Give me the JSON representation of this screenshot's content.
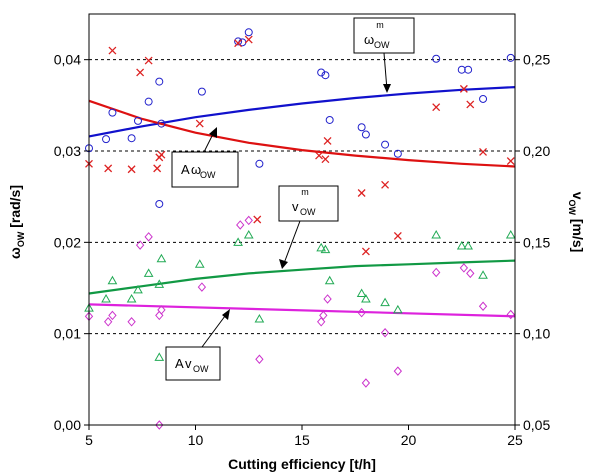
{
  "chart_data": {
    "type": "scatter",
    "xlabel": "Cutting efficiency  [t/h]",
    "ylabel_left": {
      "main": "ω",
      "sub": "OW",
      "unit": "  [rad/s]"
    },
    "ylabel_right": {
      "main": "v",
      "sub": "OW",
      "unit": "  [m/s]"
    },
    "xlim": [
      5,
      25
    ],
    "ylim_left": [
      0,
      0.045
    ],
    "ylim_right": [
      0.05,
      0.275
    ],
    "xticks": [
      5,
      10,
      15,
      20,
      25
    ],
    "xtick_labels": [
      "5",
      "10",
      "15",
      "20",
      "25"
    ],
    "yticks_left": [
      0,
      0.01,
      0.02,
      0.03,
      0.04
    ],
    "ytick_labels_left": [
      "0,00",
      "0,01",
      "0,02",
      "0,03",
      "0,04"
    ],
    "yticks_right": [
      0.05,
      0.1,
      0.15,
      0.2,
      0.25
    ],
    "ytick_labels_right": [
      "0,05",
      "0,10",
      "0,15",
      "0,20",
      "0,25"
    ],
    "grid": "horizontal dashed",
    "series": [
      {
        "marker": "circle",
        "color": "#2222cc",
        "axis": "left",
        "x": [
          5.0,
          5.8,
          6.1,
          7.0,
          7.3,
          7.8,
          8.3,
          8.3,
          8.4,
          10.3,
          12.0,
          12.2,
          12.5,
          13.0,
          15.9,
          16.1,
          16.3,
          17.8,
          18.0,
          18.9,
          19.5,
          21.3,
          22.5,
          22.8,
          23.5,
          24.8
        ],
        "y": [
          0.0303,
          0.0313,
          0.0342,
          0.0314,
          0.0333,
          0.0354,
          0.0242,
          0.0376,
          0.033,
          0.0365,
          0.042,
          0.0419,
          0.043,
          0.0286,
          0.0386,
          0.0383,
          0.0334,
          0.0326,
          0.0318,
          0.0307,
          0.0297,
          0.0401,
          0.0389,
          0.0389,
          0.0357,
          0.0402
        ]
      },
      {
        "marker": "x",
        "color": "#dd2222",
        "axis": "left",
        "x": [
          5.0,
          5.9,
          6.1,
          7.0,
          7.4,
          7.8,
          8.2,
          8.3,
          8.4,
          10.2,
          12.0,
          12.5,
          12.9,
          15.8,
          16.1,
          16.2,
          17.8,
          18.0,
          18.9,
          19.5,
          21.3,
          22.6,
          22.9,
          23.5,
          24.8
        ],
        "y": [
          0.0286,
          0.0281,
          0.041,
          0.028,
          0.0386,
          0.0399,
          0.0281,
          0.0293,
          0.0296,
          0.033,
          0.0418,
          0.0422,
          0.0225,
          0.0295,
          0.0291,
          0.0311,
          0.0254,
          0.019,
          0.0263,
          0.0207,
          0.0348,
          0.0368,
          0.0351,
          0.0299,
          0.0289
        ]
      },
      {
        "marker": "triangle",
        "color": "#22aa55",
        "axis": "right",
        "x": [
          5.0,
          5.8,
          6.1,
          7.0,
          7.3,
          7.8,
          8.3,
          8.3,
          8.4,
          10.2,
          12.0,
          12.5,
          13.0,
          15.9,
          16.1,
          16.3,
          17.8,
          18.0,
          18.9,
          19.5,
          21.3,
          22.5,
          22.8,
          23.5,
          24.8
        ],
        "y": [
          0.114,
          0.119,
          0.129,
          0.119,
          0.124,
          0.133,
          0.087,
          0.127,
          0.141,
          0.138,
          0.15,
          0.154,
          0.108,
          0.147,
          0.146,
          0.129,
          0.122,
          0.119,
          0.117,
          0.113,
          0.154,
          0.148,
          0.148,
          0.132,
          0.154
        ]
      },
      {
        "marker": "diamond",
        "color": "#cc33cc",
        "axis": "left",
        "x": [
          5.0,
          5.9,
          6.1,
          7.0,
          7.4,
          7.8,
          8.3,
          8.3,
          8.4,
          10.3,
          12.1,
          12.5,
          13.0,
          15.9,
          16.0,
          16.2,
          17.8,
          18.0,
          18.9,
          19.5,
          21.3,
          22.6,
          22.9,
          23.5,
          24.8
        ],
        "y": [
          0.0119,
          0.0113,
          0.012,
          0.0113,
          0.0197,
          0.0206,
          0.0,
          0.012,
          0.0126,
          0.0151,
          0.0219,
          0.0224,
          0.0072,
          0.0113,
          0.012,
          0.0138,
          0.0123,
          0.0046,
          0.0101,
          0.0059,
          0.0167,
          0.0172,
          0.0166,
          0.013,
          0.0121
        ]
      }
    ],
    "trendlines": [
      {
        "color": "#1111cc",
        "axis": "left",
        "x": [
          5,
          7.5,
          10,
          12.5,
          15,
          17.5,
          20,
          22.5,
          25
        ],
        "y": [
          0.0316,
          0.0327,
          0.0337,
          0.0345,
          0.0352,
          0.0358,
          0.0363,
          0.0367,
          0.037
        ]
      },
      {
        "color": "#dd1111",
        "axis": "left",
        "x": [
          5,
          7.5,
          10,
          12.5,
          15,
          17.5,
          20,
          22.5,
          25
        ],
        "y": [
          0.0355,
          0.0335,
          0.032,
          0.0309,
          0.0301,
          0.0295,
          0.029,
          0.0286,
          0.0283
        ]
      },
      {
        "color": "#119944",
        "axis": "right",
        "x": [
          5,
          7.5,
          10,
          12.5,
          15,
          17.5,
          20,
          22.5,
          25
        ],
        "y": [
          0.122,
          0.126,
          0.13,
          0.133,
          0.135,
          0.137,
          0.138,
          0.139,
          0.14
        ]
      },
      {
        "color": "#dd22dd",
        "axis": "left",
        "x": [
          5,
          25
        ],
        "y": [
          0.0132,
          0.0119
        ]
      }
    ],
    "annotations": [
      {
        "id": "omega-m",
        "main": "ω",
        "sub": "OW",
        "sup": "m",
        "prefix": ""
      },
      {
        "id": "a-omega",
        "main": "ω",
        "sub": "OW",
        "sup": "",
        "prefix": "A"
      },
      {
        "id": "v-m",
        "main": "v",
        "sub": "OW",
        "sup": "m",
        "prefix": ""
      },
      {
        "id": "a-v",
        "main": "v",
        "sub": "OW",
        "sup": "",
        "prefix": "A"
      }
    ]
  }
}
